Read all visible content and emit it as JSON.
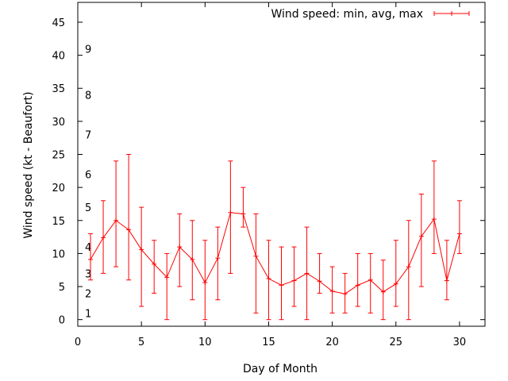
{
  "chart_data": {
    "type": "line",
    "title": "",
    "xlabel": "Day of Month",
    "ylabel": "Wind speed (kt - Beaufort)",
    "xlim": [
      0,
      32
    ],
    "ylim": [
      -1,
      48
    ],
    "xticks": [
      0,
      5,
      10,
      15,
      20,
      25,
      30
    ],
    "xtick_labels": [
      "0",
      "5",
      "10",
      "15",
      "20",
      "25",
      "30"
    ],
    "yticks": [
      0,
      5,
      10,
      15,
      20,
      25,
      30,
      35,
      40,
      45
    ],
    "ytick_labels": [
      "0",
      "5",
      "10",
      "15",
      "20",
      "25",
      "30",
      "35",
      "40",
      "45"
    ],
    "grid": false,
    "legend_position": "top-right",
    "series": [
      {
        "name": "Wind speed: min, avg, max",
        "color": "#ff0000",
        "x": [
          1,
          2,
          3,
          4,
          5,
          6,
          7,
          8,
          9,
          10,
          11,
          12,
          13,
          14,
          15,
          16,
          17,
          18,
          19,
          20,
          21,
          22,
          23,
          24,
          25,
          26,
          27,
          28,
          29,
          30
        ],
        "avg": [
          9.1,
          12.4,
          15.0,
          13.6,
          10.6,
          8.4,
          6.4,
          11.0,
          9.1,
          5.6,
          9.3,
          16.2,
          16.0,
          9.6,
          6.2,
          5.2,
          5.9,
          7.0,
          5.8,
          4.3,
          3.9,
          5.2,
          6.0,
          4.2,
          5.4,
          8.0,
          12.6,
          15.2,
          5.9,
          13.0
        ],
        "min": [
          6,
          7,
          8,
          6,
          2,
          4,
          0,
          5,
          3,
          0,
          3,
          7,
          14,
          1,
          0,
          0,
          2,
          0,
          4,
          1,
          1,
          2,
          1,
          0,
          2,
          0,
          5,
          10,
          3,
          10
        ],
        "max": [
          13,
          18,
          24,
          25,
          17,
          12,
          10,
          16,
          15,
          12,
          14,
          24,
          20,
          16,
          12,
          11,
          11,
          14,
          10,
          8,
          7,
          10,
          10,
          9,
          12,
          15,
          19,
          24,
          12,
          18
        ]
      }
    ],
    "annotations": [
      {
        "text": "1",
        "y": 1
      },
      {
        "text": "2",
        "y": 4
      },
      {
        "text": "3",
        "y": 7
      },
      {
        "text": "4",
        "y": 11
      },
      {
        "text": "5",
        "y": 17
      },
      {
        "text": "6",
        "y": 22
      },
      {
        "text": "7",
        "y": 28
      },
      {
        "text": "8",
        "y": 34
      },
      {
        "text": "9",
        "y": 41
      }
    ]
  }
}
